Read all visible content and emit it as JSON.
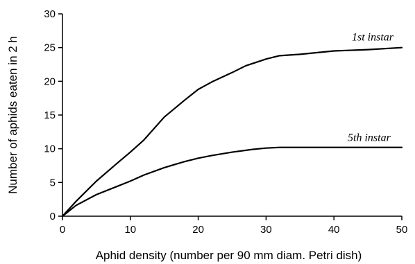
{
  "chart_data": {
    "type": "line",
    "title": "",
    "xlabel": "Aphid density (number per 90 mm diam. Petri dish)",
    "ylabel": "Number of aphids eaten in 2 h",
    "xlim": [
      0,
      50
    ],
    "ylim": [
      0,
      30
    ],
    "xticks": [
      0,
      10,
      20,
      30,
      40,
      50
    ],
    "yticks": [
      0,
      5,
      10,
      15,
      20,
      25,
      30
    ],
    "grid": false,
    "legend": "none",
    "series": [
      {
        "name": "1st instar",
        "x": [
          0,
          2,
          5,
          8,
          10,
          12,
          15,
          18,
          20,
          22,
          25,
          27,
          30,
          32,
          35,
          40,
          45,
          50
        ],
        "y": [
          0,
          2.2,
          5.2,
          7.8,
          9.5,
          11.3,
          14.7,
          17.2,
          18.8,
          19.9,
          21.3,
          22.3,
          23.3,
          23.8,
          24.0,
          24.5,
          24.7,
          25.0
        ]
      },
      {
        "name": "5th instar",
        "x": [
          0,
          2,
          5,
          8,
          10,
          12,
          15,
          18,
          20,
          22,
          25,
          28,
          30,
          32,
          35,
          40,
          45,
          50
        ],
        "y": [
          0,
          1.6,
          3.2,
          4.4,
          5.2,
          6.1,
          7.2,
          8.1,
          8.6,
          9.0,
          9.5,
          9.9,
          10.1,
          10.2,
          10.2,
          10.2,
          10.2,
          10.2
        ]
      }
    ],
    "colors": {
      "line": "#000000",
      "axis": "#000000",
      "background": "#ffffff"
    }
  }
}
